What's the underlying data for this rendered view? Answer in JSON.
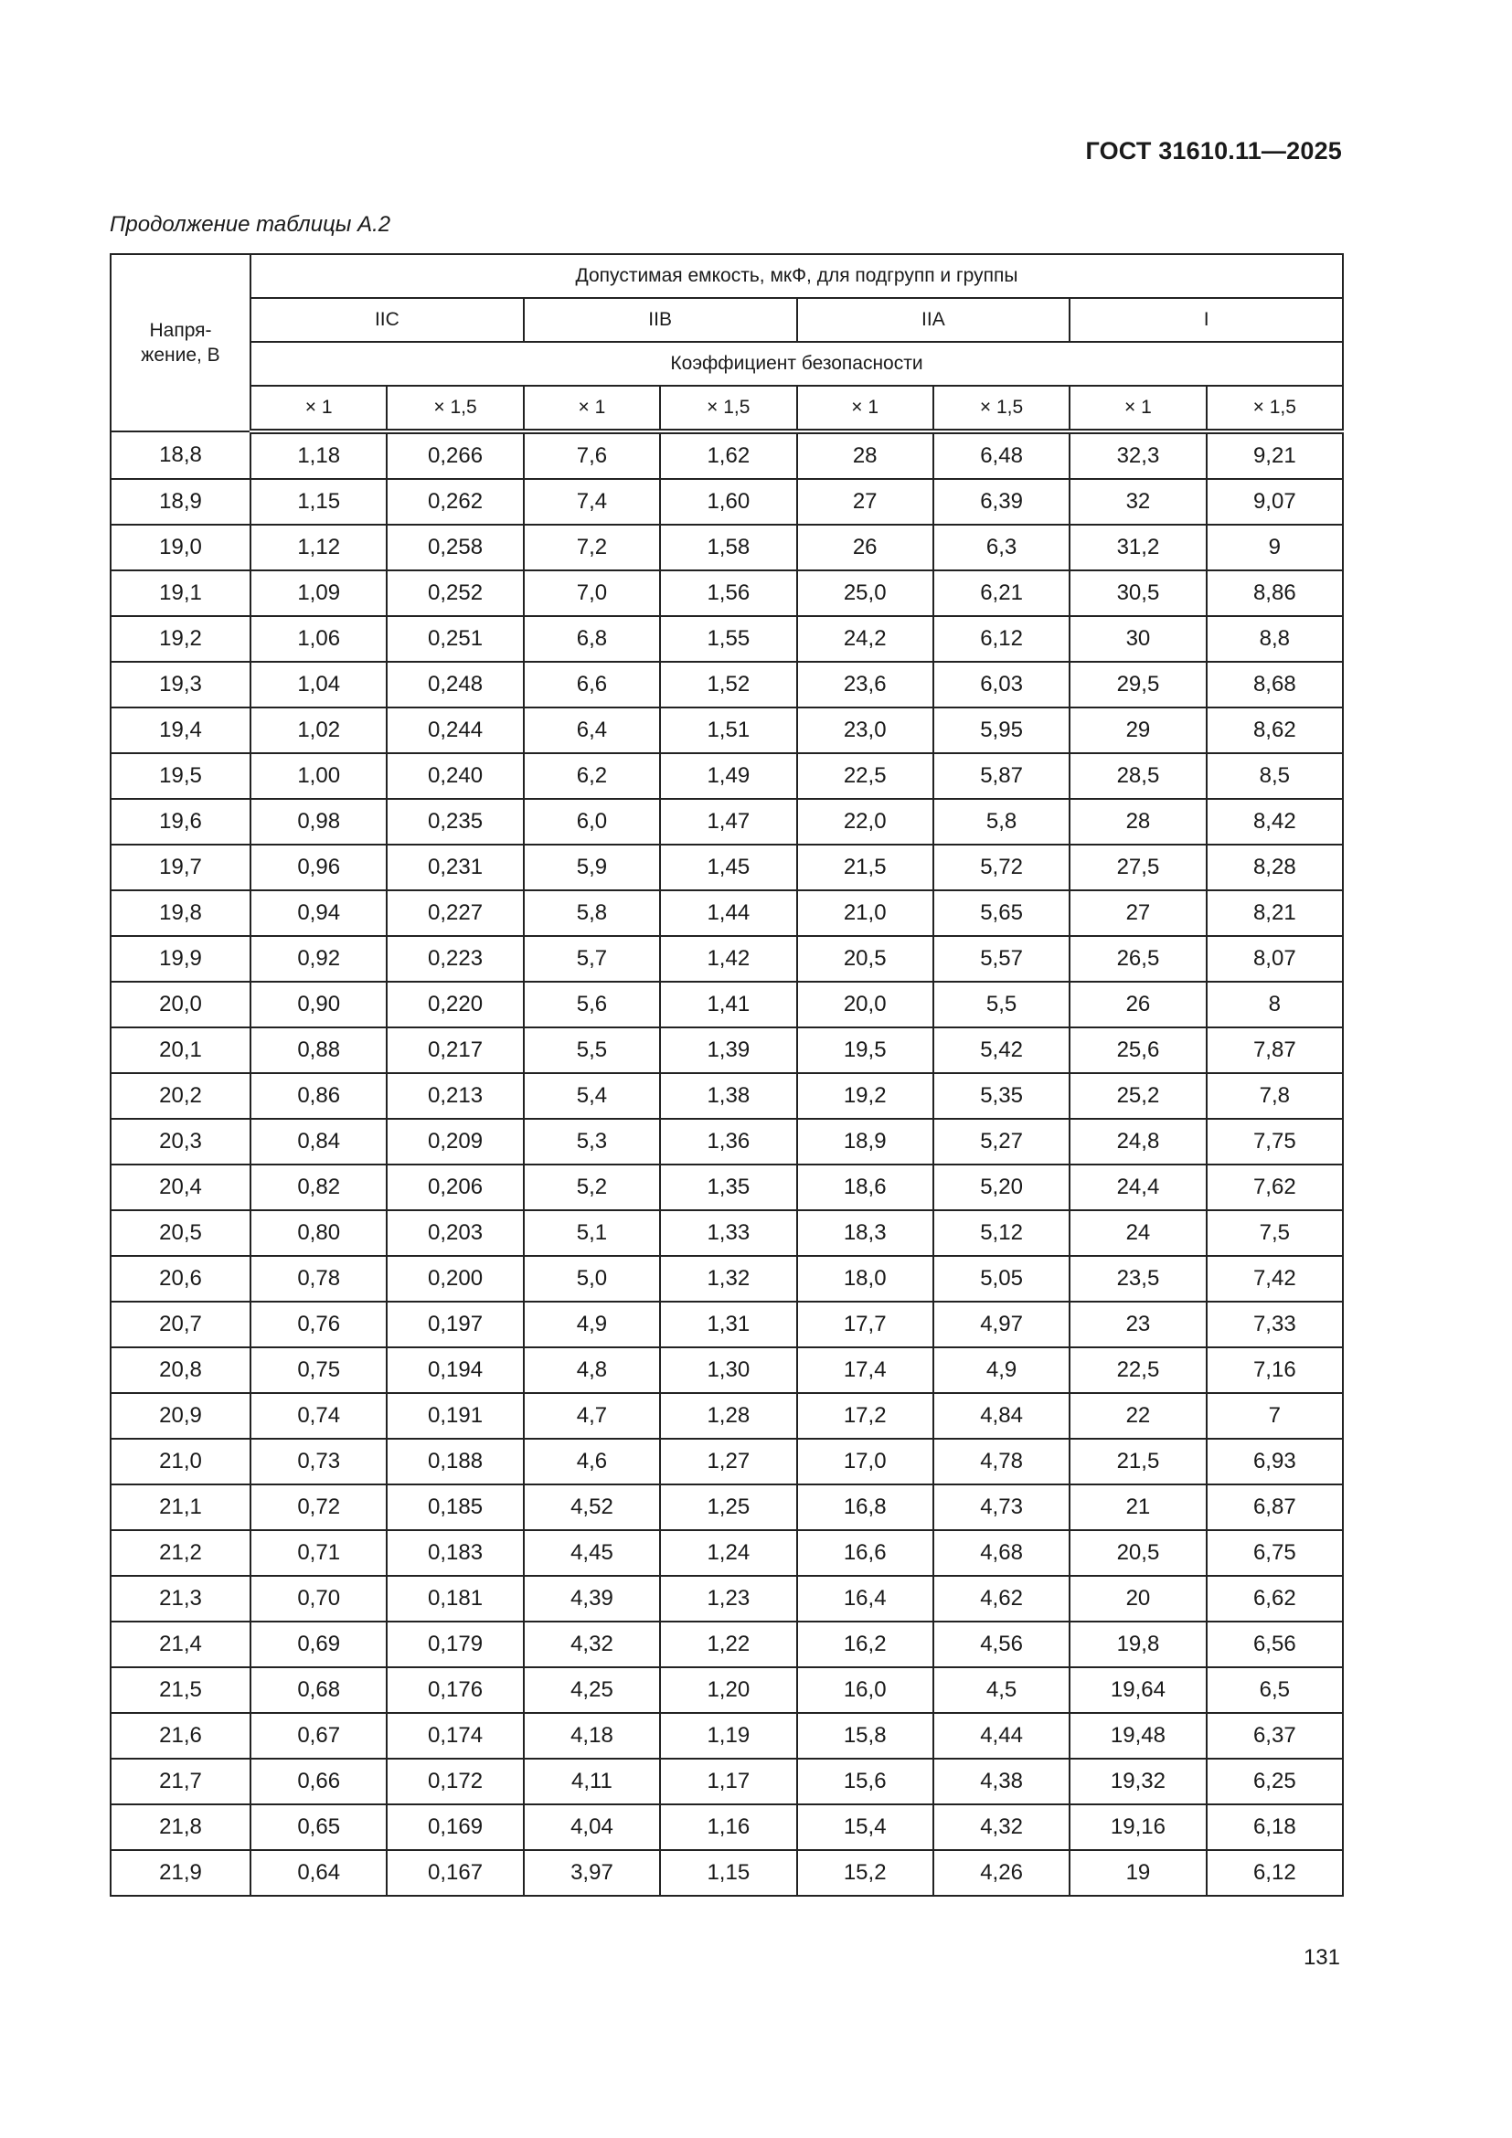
{
  "header": {
    "doc_code": "ГОСТ 31610.11—2025",
    "caption": "Продолжение таблицы А.2"
  },
  "table": {
    "voltage_header": "Напря-\nжение, В",
    "capacity_header": "Допустимая емкость, мкФ, для подгрупп и группы",
    "groups": [
      "IIC",
      "IIB",
      "IIA",
      "I"
    ],
    "safety_factor_header": "Коэффициент безопасности",
    "factors": [
      "× 1",
      "× 1,5",
      "× 1",
      "× 1,5",
      "× 1",
      "× 1,5",
      "× 1",
      "× 1,5"
    ],
    "rows": [
      [
        "18,8",
        "1,18",
        "0,266",
        "7,6",
        "1,62",
        "28",
        "6,48",
        "32,3",
        "9,21"
      ],
      [
        "18,9",
        "1,15",
        "0,262",
        "7,4",
        "1,60",
        "27",
        "6,39",
        "32",
        "9,07"
      ],
      [
        "19,0",
        "1,12",
        "0,258",
        "7,2",
        "1,58",
        "26",
        "6,3",
        "31,2",
        "9"
      ],
      [
        "19,1",
        "1,09",
        "0,252",
        "7,0",
        "1,56",
        "25,0",
        "6,21",
        "30,5",
        "8,86"
      ],
      [
        "19,2",
        "1,06",
        "0,251",
        "6,8",
        "1,55",
        "24,2",
        "6,12",
        "30",
        "8,8"
      ],
      [
        "19,3",
        "1,04",
        "0,248",
        "6,6",
        "1,52",
        "23,6",
        "6,03",
        "29,5",
        "8,68"
      ],
      [
        "19,4",
        "1,02",
        "0,244",
        "6,4",
        "1,51",
        "23,0",
        "5,95",
        "29",
        "8,62"
      ],
      [
        "19,5",
        "1,00",
        "0,240",
        "6,2",
        "1,49",
        "22,5",
        "5,87",
        "28,5",
        "8,5"
      ],
      [
        "19,6",
        "0,98",
        "0,235",
        "6,0",
        "1,47",
        "22,0",
        "5,8",
        "28",
        "8,42"
      ],
      [
        "19,7",
        "0,96",
        "0,231",
        "5,9",
        "1,45",
        "21,5",
        "5,72",
        "27,5",
        "8,28"
      ],
      [
        "19,8",
        "0,94",
        "0,227",
        "5,8",
        "1,44",
        "21,0",
        "5,65",
        "27",
        "8,21"
      ],
      [
        "19,9",
        "0,92",
        "0,223",
        "5,7",
        "1,42",
        "20,5",
        "5,57",
        "26,5",
        "8,07"
      ],
      [
        "20,0",
        "0,90",
        "0,220",
        "5,6",
        "1,41",
        "20,0",
        "5,5",
        "26",
        "8"
      ],
      [
        "20,1",
        "0,88",
        "0,217",
        "5,5",
        "1,39",
        "19,5",
        "5,42",
        "25,6",
        "7,87"
      ],
      [
        "20,2",
        "0,86",
        "0,213",
        "5,4",
        "1,38",
        "19,2",
        "5,35",
        "25,2",
        "7,8"
      ],
      [
        "20,3",
        "0,84",
        "0,209",
        "5,3",
        "1,36",
        "18,9",
        "5,27",
        "24,8",
        "7,75"
      ],
      [
        "20,4",
        "0,82",
        "0,206",
        "5,2",
        "1,35",
        "18,6",
        "5,20",
        "24,4",
        "7,62"
      ],
      [
        "20,5",
        "0,80",
        "0,203",
        "5,1",
        "1,33",
        "18,3",
        "5,12",
        "24",
        "7,5"
      ],
      [
        "20,6",
        "0,78",
        "0,200",
        "5,0",
        "1,32",
        "18,0",
        "5,05",
        "23,5",
        "7,42"
      ],
      [
        "20,7",
        "0,76",
        "0,197",
        "4,9",
        "1,31",
        "17,7",
        "4,97",
        "23",
        "7,33"
      ],
      [
        "20,8",
        "0,75",
        "0,194",
        "4,8",
        "1,30",
        "17,4",
        "4,9",
        "22,5",
        "7,16"
      ],
      [
        "20,9",
        "0,74",
        "0,191",
        "4,7",
        "1,28",
        "17,2",
        "4,84",
        "22",
        "7"
      ],
      [
        "21,0",
        "0,73",
        "0,188",
        "4,6",
        "1,27",
        "17,0",
        "4,78",
        "21,5",
        "6,93"
      ],
      [
        "21,1",
        "0,72",
        "0,185",
        "4,52",
        "1,25",
        "16,8",
        "4,73",
        "21",
        "6,87"
      ],
      [
        "21,2",
        "0,71",
        "0,183",
        "4,45",
        "1,24",
        "16,6",
        "4,68",
        "20,5",
        "6,75"
      ],
      [
        "21,3",
        "0,70",
        "0,181",
        "4,39",
        "1,23",
        "16,4",
        "4,62",
        "20",
        "6,62"
      ],
      [
        "21,4",
        "0,69",
        "0,179",
        "4,32",
        "1,22",
        "16,2",
        "4,56",
        "19,8",
        "6,56"
      ],
      [
        "21,5",
        "0,68",
        "0,176",
        "4,25",
        "1,20",
        "16,0",
        "4,5",
        "19,64",
        "6,5"
      ],
      [
        "21,6",
        "0,67",
        "0,174",
        "4,18",
        "1,19",
        "15,8",
        "4,44",
        "19,48",
        "6,37"
      ],
      [
        "21,7",
        "0,66",
        "0,172",
        "4,11",
        "1,17",
        "15,6",
        "4,38",
        "19,32",
        "6,25"
      ],
      [
        "21,8",
        "0,65",
        "0,169",
        "4,04",
        "1,16",
        "15,4",
        "4,32",
        "19,16",
        "6,18"
      ],
      [
        "21,9",
        "0,64",
        "0,167",
        "3,97",
        "1,15",
        "15,2",
        "4,26",
        "19",
        "6,12"
      ]
    ]
  },
  "footer": {
    "page_number": "131"
  }
}
